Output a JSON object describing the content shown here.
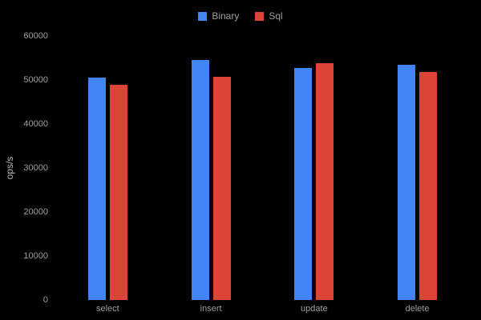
{
  "chart_data": {
    "type": "bar",
    "title": "",
    "xlabel": "",
    "ylabel": "ops/s",
    "ylim": [
      0,
      60000
    ],
    "yticks": [
      0,
      10000,
      20000,
      30000,
      40000,
      50000,
      60000
    ],
    "categories": [
      "select",
      "insert",
      "update",
      "delete"
    ],
    "series": [
      {
        "name": "Binary",
        "color": "#4285F4",
        "values": [
          50500,
          54500,
          52700,
          53500
        ]
      },
      {
        "name": "Sql",
        "color": "#DB4437",
        "values": [
          49000,
          50800,
          53800,
          51800
        ]
      }
    ],
    "legend_position": "top-center",
    "grid": false
  },
  "colors": {
    "background": "#000000",
    "text": "#9e9e9e",
    "binary": "#4285F4",
    "sql": "#DB4437"
  }
}
